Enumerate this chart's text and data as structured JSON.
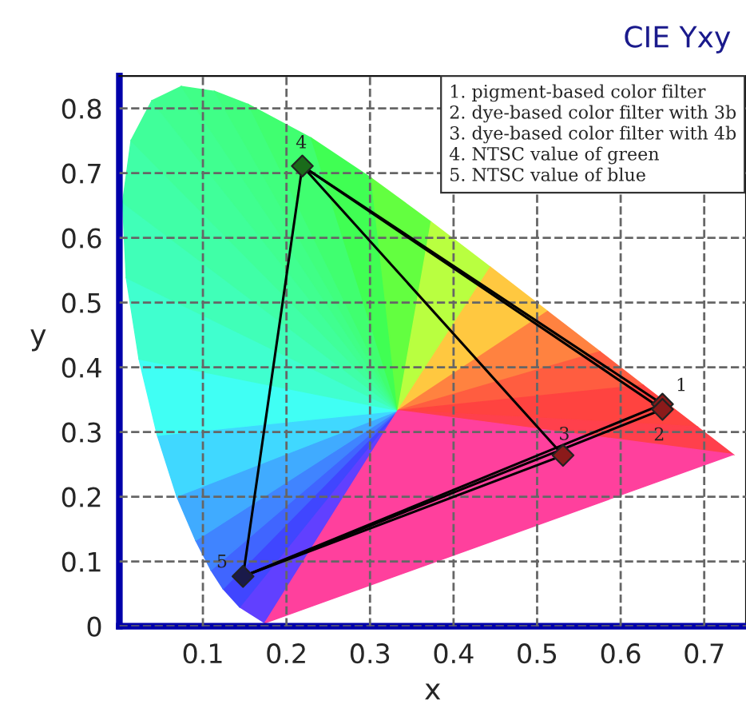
{
  "chart_data": {
    "type": "line",
    "title": "CIE Yxy",
    "xlabel": "x",
    "ylabel": "y",
    "xlim": [
      0,
      0.75
    ],
    "ylim": [
      0,
      0.85
    ],
    "xticks": [
      0.1,
      0.2,
      0.3,
      0.4,
      0.5,
      0.6,
      0.7
    ],
    "yticks": [
      0,
      0.1,
      0.2,
      0.3,
      0.4,
      0.5,
      0.6,
      0.7,
      0.8
    ],
    "grid": true,
    "line_style": "solid",
    "series": [
      {
        "color": "#000000",
        "marker": "none",
        "x": [
          0.148,
          0.219
        ],
        "values": [
          0.077,
          0.711
        ]
      },
      {
        "color": "#000000",
        "marker": "none",
        "x": [
          0.148,
          0.65
        ],
        "values": [
          0.077,
          0.343
        ]
      },
      {
        "color": "#000000",
        "marker": "none",
        "x": [
          0.219,
          0.65
        ],
        "values": [
          0.711,
          0.343
        ]
      },
      {
        "color": "#000000",
        "marker": "none",
        "x": [
          0.148,
          0.65
        ],
        "values": [
          0.077,
          0.335
        ]
      },
      {
        "color": "#000000",
        "marker": "none",
        "x": [
          0.219,
          0.65
        ],
        "values": [
          0.711,
          0.335
        ]
      },
      {
        "color": "#000000",
        "marker": "none",
        "x": [
          0.148,
          0.531
        ],
        "values": [
          0.077,
          0.264
        ]
      },
      {
        "color": "#000000",
        "marker": "none",
        "x": [
          0.219,
          0.531
        ],
        "values": [
          0.711,
          0.264
        ]
      },
      {
        "type": "scatter",
        "marker": "diamond",
        "x": [
          0.65,
          0.65,
          0.531,
          0.219,
          0.148
        ],
        "values": [
          0.343,
          0.335,
          0.264,
          0.711,
          0.077
        ],
        "colors": [
          "#8b1a1a",
          "#8b1a1a",
          "#8b1a1a",
          "#1a6b1a",
          "#1a1a4a"
        ]
      }
    ],
    "annotations": [
      {
        "text": "1",
        "x": 0.65,
        "y": 0.343
      },
      {
        "text": "2",
        "x": 0.65,
        "y": 0.335
      },
      {
        "text": "3",
        "x": 0.531,
        "y": 0.264
      },
      {
        "text": "4",
        "x": 0.219,
        "y": 0.711
      },
      {
        "text": "5",
        "x": 0.148,
        "y": 0.077
      },
      "1. pigment-based color filter\n2. dye-based color filter with 3b\n3. dye-based color filter with 4b\n4. NTSC value of green\n5. NTSC value of blue"
    ]
  }
}
